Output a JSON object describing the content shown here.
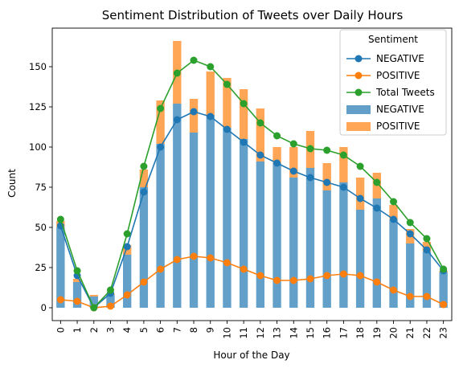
{
  "chart_data": {
    "type": "bar",
    "title": "Sentiment Distribution of Tweets over Daily Hours",
    "xlabel": "Hour of the Day",
    "ylabel": "Count",
    "categories": [
      "0",
      "1",
      "2",
      "3",
      "4",
      "5",
      "6",
      "7",
      "8",
      "9",
      "10",
      "11",
      "12",
      "13",
      "14",
      "15",
      "16",
      "17",
      "18",
      "19",
      "20",
      "21",
      "22",
      "23"
    ],
    "ylim": [
      -8,
      174
    ],
    "yticks": [
      0,
      25,
      50,
      75,
      100,
      125,
      150
    ],
    "stacked": true,
    "grid": false,
    "legend": {
      "title": "Sentiment",
      "placement": "top-right",
      "entries": [
        "NEGATIVE",
        "POSITIVE",
        "Total Tweets",
        "NEGATIVE",
        "POSITIVE"
      ]
    },
    "colors": {
      "negative": "#1f77b4",
      "positive": "#ff7f0e",
      "total": "#2ca02c"
    },
    "bar_series": [
      {
        "name": "NEGATIVE",
        "values": [
          50,
          16,
          7,
          8,
          33,
          75,
          102,
          127,
          109,
          120,
          112,
          105,
          91,
          90,
          81,
          87,
          73,
          78,
          61,
          68,
          55,
          40,
          35,
          22
        ]
      },
      {
        "name": "POSITIVE",
        "values": [
          4,
          2,
          1,
          1,
          6,
          11,
          27,
          39,
          21,
          27,
          31,
          31,
          33,
          10,
          19,
          23,
          17,
          22,
          20,
          16,
          9,
          9,
          6,
          1
        ]
      }
    ],
    "line_series": [
      {
        "name": "NEGATIVE",
        "values": [
          51,
          20,
          0,
          9,
          38,
          72,
          100,
          117,
          122,
          119,
          111,
          103,
          95,
          90,
          85,
          81,
          78,
          75,
          68,
          62,
          55,
          46,
          36,
          23
        ]
      },
      {
        "name": "POSITIVE",
        "values": [
          5,
          4,
          0,
          1,
          8,
          16,
          24,
          30,
          32,
          31,
          28,
          24,
          20,
          17,
          17,
          18,
          20,
          21,
          20,
          16,
          11,
          7,
          7,
          2
        ]
      },
      {
        "name": "Total Tweets",
        "values": [
          55,
          23,
          0,
          11,
          46,
          88,
          124,
          146,
          154,
          150,
          139,
          127,
          115,
          107,
          102,
          99,
          98,
          95,
          88,
          78,
          66,
          53,
          43,
          24
        ]
      }
    ]
  }
}
